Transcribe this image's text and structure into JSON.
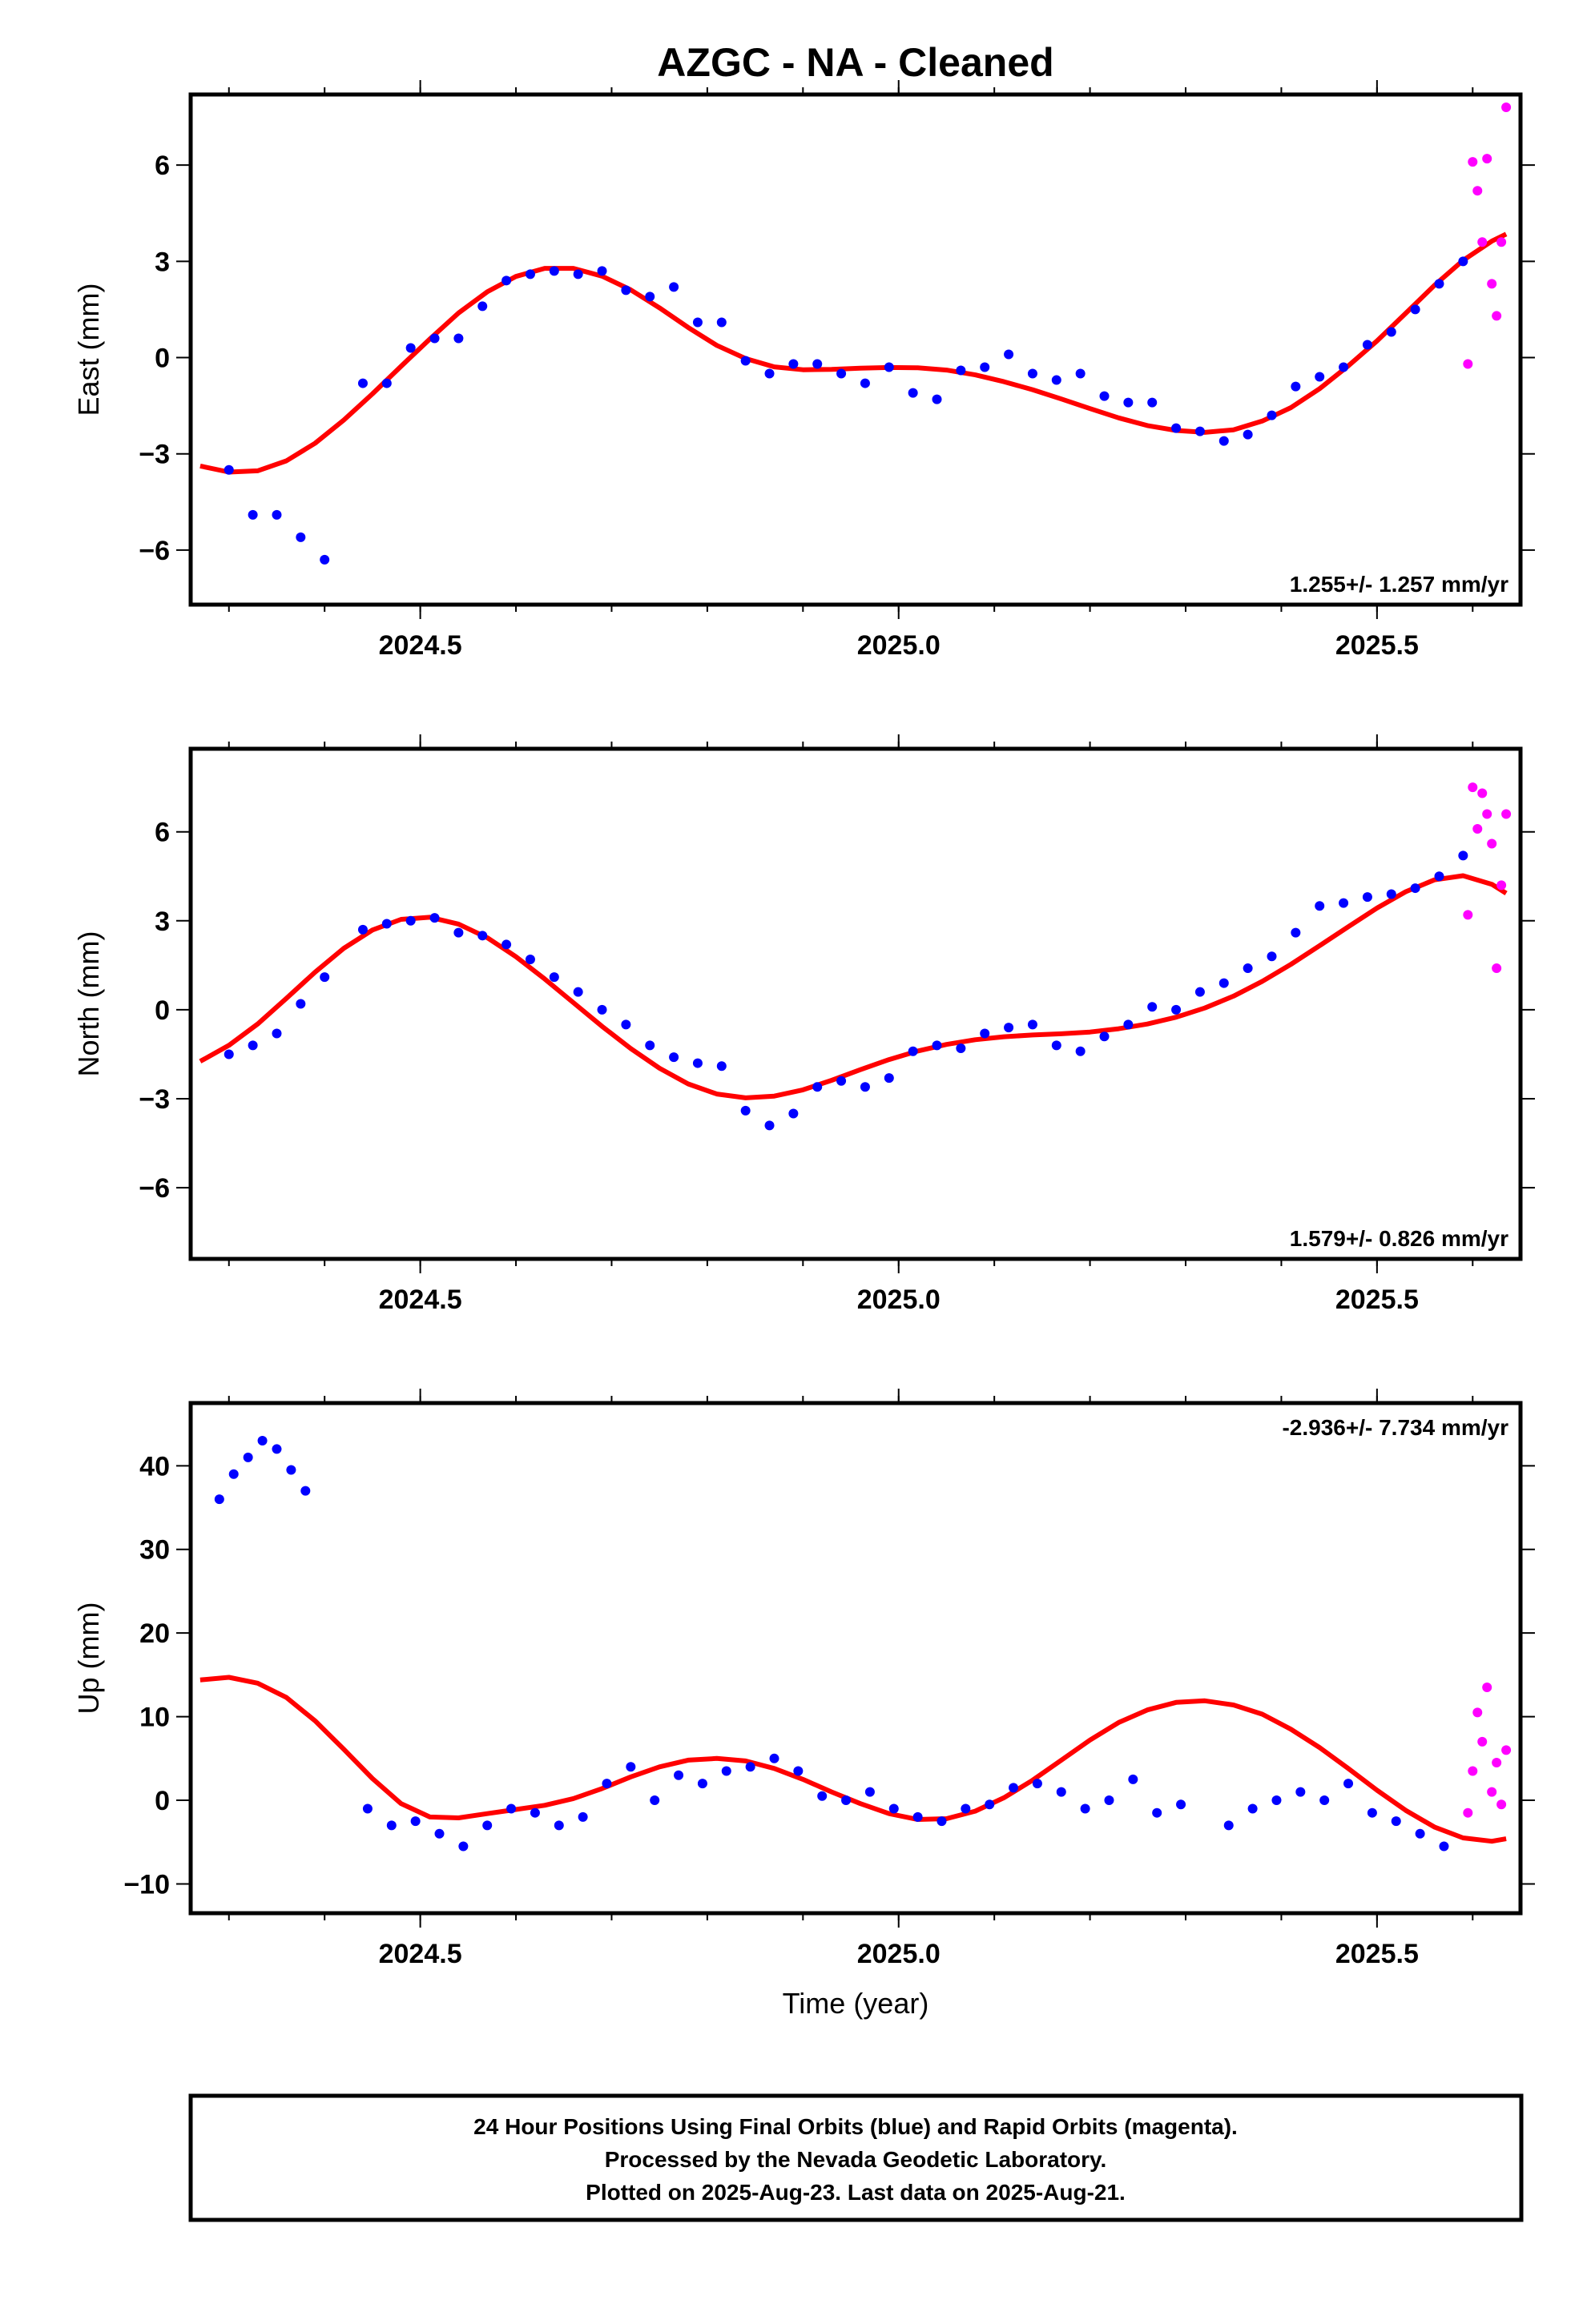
{
  "title": "AZGC  - NA - Cleaned",
  "caption": [
    "24 Hour Positions Using Final Orbits (blue) and Rapid Orbits (magenta).",
    "Processed by the Nevada Geodetic Laboratory.",
    "Plotted on 2025-Aug-23. Last data on 2025-Aug-21."
  ],
  "colors": {
    "final": "#0000ff",
    "rapid": "#ff00ff",
    "fit": "#ff0000",
    "frame": "#000000"
  },
  "chart_data": [
    {
      "type": "scatter",
      "title": "AZGC  - NA - Cleaned",
      "ylabel": "East (mm)",
      "xlabel": "",
      "xlim": [
        2024.26,
        2025.65
      ],
      "ylim": [
        -7.7,
        8.2
      ],
      "xticks": [
        2024.5,
        2025.0,
        2025.5
      ],
      "xtick_labels": [
        "2024.5",
        "2025.0",
        "2025.5"
      ],
      "yticks": [
        -6,
        -3,
        0,
        3,
        6
      ],
      "ytick_labels": [
        "−6",
        "−3",
        "0",
        "3",
        "6"
      ],
      "rate": "1.255+/- 1.257 mm/yr",
      "series": [
        {
          "name": "Final Orbits",
          "x": [
            2024.3,
            2024.325,
            2024.35,
            2024.375,
            2024.4,
            2024.44,
            2024.465,
            2024.49,
            2024.515,
            2024.54,
            2024.565,
            2024.59,
            2024.615,
            2024.64,
            2024.665,
            2024.69,
            2024.715,
            2024.74,
            2024.765,
            2024.79,
            2024.815,
            2024.84,
            2024.865,
            2024.89,
            2024.915,
            2024.94,
            2024.965,
            2024.99,
            2025.015,
            2025.04,
            2025.065,
            2025.09,
            2025.115,
            2025.14,
            2025.165,
            2025.19,
            2025.215,
            2025.24,
            2025.265,
            2025.29,
            2025.315,
            2025.34,
            2025.365,
            2025.39,
            2025.415,
            2025.44,
            2025.465,
            2025.49,
            2025.515,
            2025.54,
            2025.565,
            2025.59
          ],
          "values": [
            -3.5,
            -4.9,
            -4.9,
            -5.6,
            -6.3,
            -0.8,
            -0.8,
            0.3,
            0.6,
            0.6,
            1.6,
            2.4,
            2.6,
            2.7,
            2.6,
            2.7,
            2.1,
            1.9,
            2.2,
            1.1,
            1.1,
            -0.1,
            -0.5,
            -0.2,
            -0.2,
            -0.5,
            -0.8,
            -0.3,
            -1.1,
            -1.3,
            -0.4,
            -0.3,
            0.1,
            -0.5,
            -0.7,
            -0.5,
            -1.2,
            -1.4,
            -1.4,
            -2.2,
            -2.3,
            -2.6,
            -2.4,
            -1.8,
            -0.9,
            -0.6,
            -0.3,
            0.4,
            0.8,
            1.5,
            2.3,
            3.0
          ]
        },
        {
          "name": "Rapid Orbits",
          "x": [
            2025.595,
            2025.6,
            2025.605,
            2025.61,
            2025.615,
            2025.62,
            2025.625,
            2025.63,
            2025.635
          ],
          "values": [
            -0.2,
            6.1,
            5.2,
            3.6,
            6.2,
            2.3,
            1.3,
            3.6,
            7.8
          ]
        },
        {
          "name": "Fit",
          "x": [
            2024.27,
            2024.3,
            2024.33,
            2024.36,
            2024.39,
            2024.42,
            2024.45,
            2024.48,
            2024.51,
            2024.54,
            2024.57,
            2024.6,
            2024.63,
            2024.66,
            2024.69,
            2024.72,
            2024.75,
            2024.78,
            2024.81,
            2024.84,
            2024.87,
            2024.9,
            2024.93,
            2024.96,
            2024.99,
            2025.02,
            2025.05,
            2025.08,
            2025.11,
            2025.14,
            2025.17,
            2025.2,
            2025.23,
            2025.26,
            2025.29,
            2025.32,
            2025.35,
            2025.38,
            2025.41,
            2025.44,
            2025.47,
            2025.5,
            2025.53,
            2025.56,
            2025.59,
            2025.62,
            2025.635
          ],
          "values": [
            -3.38,
            -3.57,
            -3.53,
            -3.22,
            -2.67,
            -1.95,
            -1.13,
            -0.27,
            0.58,
            1.39,
            2.05,
            2.53,
            2.78,
            2.78,
            2.54,
            2.11,
            1.55,
            0.94,
            0.38,
            -0.03,
            -0.29,
            -0.38,
            -0.37,
            -0.33,
            -0.31,
            -0.32,
            -0.39,
            -0.54,
            -0.75,
            -1.0,
            -1.29,
            -1.59,
            -1.88,
            -2.12,
            -2.27,
            -2.33,
            -2.25,
            -1.98,
            -1.56,
            -0.97,
            -0.26,
            0.52,
            1.38,
            2.25,
            3.03,
            3.63,
            3.85
          ]
        }
      ]
    },
    {
      "type": "scatter",
      "title": "",
      "ylabel": "North (mm)",
      "xlabel": "",
      "xlim": [
        2024.26,
        2025.65
      ],
      "ylim": [
        -8.4,
        8.8
      ],
      "xticks": [
        2024.5,
        2025.0,
        2025.5
      ],
      "xtick_labels": [
        "2024.5",
        "2025.0",
        "2025.5"
      ],
      "yticks": [
        -6,
        -3,
        0,
        3,
        6
      ],
      "ytick_labels": [
        "−6",
        "−3",
        "0",
        "3",
        "6"
      ],
      "rate": "1.579+/- 0.826 mm/yr",
      "series": [
        {
          "name": "Final Orbits",
          "x": [
            2024.3,
            2024.325,
            2024.35,
            2024.375,
            2024.4,
            2024.44,
            2024.465,
            2024.49,
            2024.515,
            2024.54,
            2024.565,
            2024.59,
            2024.615,
            2024.64,
            2024.665,
            2024.69,
            2024.715,
            2024.74,
            2024.765,
            2024.79,
            2024.815,
            2024.84,
            2024.865,
            2024.89,
            2024.915,
            2024.94,
            2024.965,
            2024.99,
            2025.015,
            2025.04,
            2025.065,
            2025.09,
            2025.115,
            2025.14,
            2025.165,
            2025.19,
            2025.215,
            2025.24,
            2025.265,
            2025.29,
            2025.315,
            2025.34,
            2025.365,
            2025.39,
            2025.415,
            2025.44,
            2025.465,
            2025.49,
            2025.515,
            2025.54,
            2025.565,
            2025.59
          ],
          "values": [
            -1.5,
            -1.2,
            -0.8,
            0.2,
            1.1,
            2.7,
            2.9,
            3.0,
            3.1,
            2.6,
            2.5,
            2.2,
            1.7,
            1.1,
            0.6,
            0.0,
            -0.5,
            -1.2,
            -1.6,
            -1.8,
            -1.9,
            -3.4,
            -3.9,
            -3.5,
            -2.6,
            -2.4,
            -2.6,
            -2.3,
            -1.4,
            -1.2,
            -1.3,
            -0.8,
            -0.6,
            -0.5,
            -1.2,
            -1.4,
            -0.9,
            -0.5,
            0.1,
            0.0,
            0.6,
            0.9,
            1.4,
            1.8,
            2.6,
            3.5,
            3.6,
            3.8,
            3.9,
            4.1,
            4.5,
            5.2
          ]
        },
        {
          "name": "Rapid Orbits",
          "x": [
            2025.595,
            2025.6,
            2025.605,
            2025.61,
            2025.615,
            2025.62,
            2025.625,
            2025.63,
            2025.635
          ],
          "values": [
            3.2,
            7.5,
            6.1,
            7.3,
            6.6,
            5.6,
            1.4,
            4.2,
            6.6
          ]
        },
        {
          "name": "Fit",
          "x": [
            2024.27,
            2024.3,
            2024.33,
            2024.36,
            2024.39,
            2024.42,
            2024.45,
            2024.48,
            2024.51,
            2024.54,
            2024.57,
            2024.6,
            2024.63,
            2024.66,
            2024.69,
            2024.72,
            2024.75,
            2024.78,
            2024.81,
            2024.84,
            2024.87,
            2024.9,
            2024.93,
            2024.96,
            2024.99,
            2025.02,
            2025.05,
            2025.08,
            2025.11,
            2025.14,
            2025.17,
            2025.2,
            2025.23,
            2025.26,
            2025.29,
            2025.32,
            2025.35,
            2025.38,
            2025.41,
            2025.44,
            2025.47,
            2025.5,
            2025.53,
            2025.56,
            2025.59,
            2025.62,
            2025.635
          ],
          "values": [
            -1.74,
            -1.2,
            -0.48,
            0.38,
            1.27,
            2.07,
            2.69,
            3.05,
            3.12,
            2.89,
            2.43,
            1.79,
            1.04,
            0.24,
            -0.56,
            -1.31,
            -1.97,
            -2.5,
            -2.84,
            -2.97,
            -2.91,
            -2.7,
            -2.38,
            -2.02,
            -1.68,
            -1.39,
            -1.17,
            -1.01,
            -0.91,
            -0.85,
            -0.81,
            -0.75,
            -0.64,
            -0.48,
            -0.25,
            0.06,
            0.46,
            0.96,
            1.53,
            2.16,
            2.8,
            3.43,
            3.98,
            4.38,
            4.52,
            4.23,
            3.93
          ]
        }
      ]
    },
    {
      "type": "scatter",
      "title": "",
      "ylabel": "Up (mm)",
      "xlabel": "Time (year)",
      "xlim": [
        2024.26,
        2025.65
      ],
      "ylim": [
        -13.5,
        47.5
      ],
      "xticks": [
        2024.5,
        2025.0,
        2025.5
      ],
      "xtick_labels": [
        "2024.5",
        "2025.0",
        "2025.5"
      ],
      "yticks": [
        -10,
        0,
        10,
        20,
        30,
        40
      ],
      "ytick_labels": [
        "−10",
        "0",
        "10",
        "20",
        "30",
        "40"
      ],
      "rate": "-2.936+/- 7.734 mm/yr",
      "series": [
        {
          "name": "Final Orbits",
          "x": [
            2024.29,
            2024.305,
            2024.32,
            2024.335,
            2024.35,
            2024.365,
            2024.38,
            2024.445,
            2024.47,
            2024.495,
            2024.52,
            2024.545,
            2024.57,
            2024.595,
            2024.62,
            2024.645,
            2024.67,
            2024.695,
            2024.72,
            2024.745,
            2024.77,
            2024.795,
            2024.82,
            2024.845,
            2024.87,
            2024.895,
            2024.92,
            2024.945,
            2024.97,
            2024.995,
            2025.02,
            2025.045,
            2025.07,
            2025.095,
            2025.12,
            2025.145,
            2025.17,
            2025.195,
            2025.22,
            2025.245,
            2025.27,
            2025.295,
            2025.345,
            2025.37,
            2025.395,
            2025.42,
            2025.445,
            2025.47,
            2025.495,
            2025.52,
            2025.545,
            2025.57
          ],
          "values": [
            36.0,
            39.0,
            41.0,
            43.0,
            42.0,
            39.5,
            37.0,
            -1.0,
            -3.0,
            -2.5,
            -4.0,
            -5.5,
            -3.0,
            -1.0,
            -1.5,
            -3.0,
            -2.0,
            2.0,
            4.0,
            0.0,
            3.0,
            2.0,
            3.5,
            4.0,
            5.0,
            3.5,
            0.5,
            0.0,
            1.0,
            -1.0,
            -2.0,
            -2.5,
            -1.0,
            -0.5,
            1.5,
            2.0,
            1.0,
            -1.0,
            0.0,
            2.5,
            -1.5,
            -0.5,
            -3.0,
            -1.0,
            0.0,
            1.0,
            0.0,
            2.0,
            -1.5,
            -2.5,
            -4.0,
            -5.5
          ]
        },
        {
          "name": "Rapid Orbits",
          "x": [
            2025.595,
            2025.6,
            2025.605,
            2025.61,
            2025.615,
            2025.62,
            2025.625,
            2025.63,
            2025.635
          ],
          "values": [
            -1.5,
            3.5,
            10.5,
            7.0,
            13.5,
            1.0,
            4.5,
            -0.5,
            6.0
          ]
        },
        {
          "name": "Fit",
          "x": [
            2024.27,
            2024.3,
            2024.33,
            2024.36,
            2024.39,
            2024.42,
            2024.45,
            2024.48,
            2024.51,
            2024.54,
            2024.57,
            2024.6,
            2024.63,
            2024.66,
            2024.69,
            2024.72,
            2024.75,
            2024.78,
            2024.81,
            2024.84,
            2024.87,
            2024.9,
            2024.93,
            2024.96,
            2024.99,
            2025.02,
            2025.05,
            2025.08,
            2025.11,
            2025.14,
            2025.17,
            2025.2,
            2025.23,
            2025.26,
            2025.29,
            2025.32,
            2025.35,
            2025.38,
            2025.41,
            2025.44,
            2025.47,
            2025.5,
            2025.53,
            2025.56,
            2025.59,
            2025.62,
            2025.635
          ],
          "values": [
            14.4,
            14.7,
            14.0,
            12.3,
            9.5,
            6.1,
            2.6,
            -0.4,
            -2.0,
            -2.1,
            -1.6,
            -1.1,
            -0.6,
            0.2,
            1.4,
            2.8,
            4.0,
            4.8,
            5.0,
            4.7,
            3.8,
            2.5,
            1.0,
            -0.4,
            -1.6,
            -2.3,
            -2.2,
            -1.3,
            0.3,
            2.4,
            4.8,
            7.2,
            9.3,
            10.8,
            11.7,
            11.9,
            11.4,
            10.3,
            8.5,
            6.3,
            3.8,
            1.2,
            -1.2,
            -3.2,
            -4.5,
            -4.9,
            -4.6
          ]
        }
      ]
    }
  ]
}
